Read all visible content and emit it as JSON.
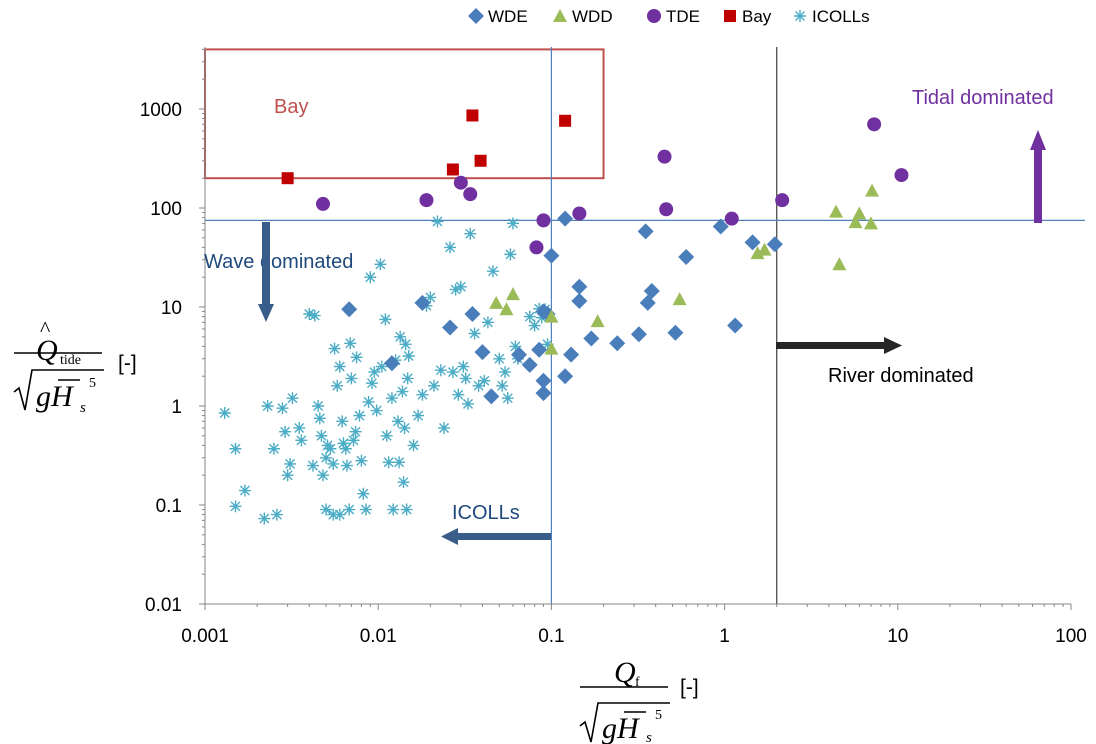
{
  "chart_data": {
    "type": "scatter",
    "x_scale": "log",
    "y_scale": "log",
    "xlim": [
      0.001,
      100
    ],
    "ylim": [
      0.01,
      5000
    ],
    "x_ticks": [
      "0.001",
      "0.01",
      "0.1",
      "1",
      "10",
      "100"
    ],
    "y_ticks": [
      "0.01",
      "0.1",
      "1",
      "10",
      "100",
      "1000"
    ],
    "grid": false,
    "legend_position": "top",
    "xlabel": {
      "num": "Q",
      "num_sub": "f",
      "den": "gH",
      "den_sub": "s",
      "den_sup": "5",
      "unit": "[-]"
    },
    "ylabel": {
      "num": "Q",
      "num_hat": "^",
      "num_sub": "tide",
      "den": "gH",
      "den_sub": "s",
      "den_sup": "5",
      "unit": "[-]"
    },
    "series": [
      {
        "name": "WDE",
        "marker": "diamond",
        "color": "#4a7ebb",
        "points": [
          [
            0.0068,
            9.5
          ],
          [
            0.018,
            11
          ],
          [
            0.026,
            6.2
          ],
          [
            0.035,
            8.5
          ],
          [
            0.04,
            3.5
          ],
          [
            0.045,
            1.25
          ],
          [
            0.065,
            3.3
          ],
          [
            0.075,
            2.6
          ],
          [
            0.085,
            3.7
          ],
          [
            0.09,
            1.8
          ],
          [
            0.09,
            1.35
          ],
          [
            0.09,
            9
          ],
          [
            0.095,
            8.5
          ],
          [
            0.1,
            33
          ],
          [
            0.12,
            78
          ],
          [
            0.12,
            2
          ],
          [
            0.13,
            3.3
          ],
          [
            0.145,
            11.5
          ],
          [
            0.145,
            16
          ],
          [
            0.17,
            4.8
          ],
          [
            0.24,
            4.3
          ],
          [
            0.32,
            5.3
          ],
          [
            0.35,
            58
          ],
          [
            0.36,
            11
          ],
          [
            0.38,
            14.5
          ],
          [
            0.52,
            5.5
          ],
          [
            0.6,
            32
          ],
          [
            0.95,
            65
          ],
          [
            1.15,
            6.5
          ],
          [
            1.45,
            45
          ],
          [
            1.95,
            43
          ],
          [
            0.012,
            2.7
          ]
        ]
      },
      {
        "name": "WDD",
        "marker": "triangle",
        "color": "#9bbb59",
        "points": [
          [
            0.048,
            11
          ],
          [
            0.055,
            9.5
          ],
          [
            0.06,
            13.5
          ],
          [
            0.1,
            8
          ],
          [
            0.1,
            3.8
          ],
          [
            0.185,
            7.2
          ],
          [
            0.55,
            12
          ],
          [
            1.55,
            35
          ],
          [
            1.7,
            38
          ],
          [
            4.4,
            92
          ],
          [
            4.6,
            27
          ],
          [
            5.7,
            72
          ],
          [
            6.0,
            88
          ],
          [
            7.0,
            70
          ],
          [
            7.1,
            150
          ]
        ]
      },
      {
        "name": "TDE",
        "marker": "circle",
        "color": "#7030a0",
        "points": [
          [
            0.0048,
            110
          ],
          [
            0.019,
            120
          ],
          [
            0.03,
            180
          ],
          [
            0.034,
            138
          ],
          [
            0.082,
            40
          ],
          [
            0.09,
            75
          ],
          [
            0.145,
            88
          ],
          [
            0.45,
            330
          ],
          [
            0.46,
            97
          ],
          [
            1.1,
            78
          ],
          [
            2.15,
            120
          ],
          [
            7.3,
            700
          ],
          [
            10.5,
            215
          ]
        ]
      },
      {
        "name": "Bay",
        "marker": "square",
        "color": "#c00000",
        "points": [
          [
            0.003,
            200
          ],
          [
            0.027,
            245
          ],
          [
            0.035,
            860
          ],
          [
            0.039,
            300
          ],
          [
            0.12,
            760
          ]
        ]
      },
      {
        "name": "ICOLLs",
        "marker": "asterisk",
        "color": "#4bacc6",
        "points": [
          [
            0.0013,
            0.85
          ],
          [
            0.0015,
            0.37
          ],
          [
            0.0015,
            0.097
          ],
          [
            0.0017,
            0.14
          ],
          [
            0.0022,
            0.073
          ],
          [
            0.0023,
            1.0
          ],
          [
            0.0025,
            0.37
          ],
          [
            0.0026,
            0.08
          ],
          [
            0.0028,
            0.95
          ],
          [
            0.0029,
            0.55
          ],
          [
            0.003,
            0.2
          ],
          [
            0.0031,
            0.26
          ],
          [
            0.0032,
            1.2
          ],
          [
            0.0035,
            0.6
          ],
          [
            0.0036,
            0.45
          ],
          [
            0.004,
            8.5
          ],
          [
            0.0043,
            8.2
          ],
          [
            0.0042,
            0.25
          ],
          [
            0.0045,
            1.0
          ],
          [
            0.0046,
            0.75
          ],
          [
            0.0047,
            0.5
          ],
          [
            0.0048,
            0.2
          ],
          [
            0.005,
            0.3
          ],
          [
            0.005,
            0.09
          ],
          [
            0.0051,
            0.4
          ],
          [
            0.0053,
            0.37
          ],
          [
            0.0055,
            0.26
          ],
          [
            0.0055,
            0.08
          ],
          [
            0.0056,
            3.8
          ],
          [
            0.0058,
            1.6
          ],
          [
            0.006,
            2.5
          ],
          [
            0.006,
            0.08
          ],
          [
            0.0062,
            0.7
          ],
          [
            0.0063,
            0.42
          ],
          [
            0.0065,
            0.37
          ],
          [
            0.0066,
            0.25
          ],
          [
            0.0068,
            0.09
          ],
          [
            0.0069,
            4.3
          ],
          [
            0.007,
            1.9
          ],
          [
            0.0072,
            0.45
          ],
          [
            0.0074,
            0.55
          ],
          [
            0.0075,
            3.1
          ],
          [
            0.0078,
            0.8
          ],
          [
            0.008,
            0.28
          ],
          [
            0.0082,
            0.13
          ],
          [
            0.0085,
            0.09
          ],
          [
            0.0088,
            1.1
          ],
          [
            0.009,
            20
          ],
          [
            0.0092,
            1.7
          ],
          [
            0.0095,
            2.2
          ],
          [
            0.0098,
            0.9
          ],
          [
            0.0103,
            27
          ],
          [
            0.0105,
            2.5
          ],
          [
            0.011,
            7.5
          ],
          [
            0.0112,
            0.5
          ],
          [
            0.0115,
            0.27
          ],
          [
            0.012,
            1.2
          ],
          [
            0.0122,
            0.09
          ],
          [
            0.0126,
            2.9
          ],
          [
            0.013,
            0.7
          ],
          [
            0.0132,
            0.27
          ],
          [
            0.0134,
            5
          ],
          [
            0.0138,
            1.4
          ],
          [
            0.014,
            0.17
          ],
          [
            0.0142,
            0.6
          ],
          [
            0.0144,
            4.2
          ],
          [
            0.0146,
            0.09
          ],
          [
            0.0148,
            1.9
          ],
          [
            0.015,
            3.2
          ],
          [
            0.016,
            0.4
          ],
          [
            0.017,
            0.8
          ],
          [
            0.018,
            1.3
          ],
          [
            0.019,
            10.3
          ],
          [
            0.02,
            12.5
          ],
          [
            0.021,
            1.6
          ],
          [
            0.022,
            73
          ],
          [
            0.023,
            2.3
          ],
          [
            0.024,
            0.6
          ],
          [
            0.026,
            40
          ],
          [
            0.027,
            2.2
          ],
          [
            0.028,
            15
          ],
          [
            0.029,
            1.3
          ],
          [
            0.03,
            16
          ],
          [
            0.031,
            2.5
          ],
          [
            0.032,
            1.9
          ],
          [
            0.033,
            1.05
          ],
          [
            0.034,
            55
          ],
          [
            0.036,
            5.4
          ],
          [
            0.038,
            1.6
          ],
          [
            0.041,
            1.8
          ],
          [
            0.043,
            7
          ],
          [
            0.046,
            23
          ],
          [
            0.05,
            3
          ],
          [
            0.052,
            1.6
          ],
          [
            0.054,
            2.2
          ],
          [
            0.056,
            1.2
          ],
          [
            0.058,
            34
          ],
          [
            0.06,
            70
          ],
          [
            0.062,
            4
          ],
          [
            0.064,
            3
          ],
          [
            0.075,
            8
          ],
          [
            0.08,
            6.5
          ],
          [
            0.085,
            9.6
          ],
          [
            0.088,
            7.8
          ],
          [
            0.092,
            9.5
          ],
          [
            0.095,
            4.2
          ]
        ]
      }
    ],
    "overlays": {
      "bay_box": {
        "x1": 0.001,
        "x2": 0.2,
        "y1": 200,
        "y2": 4000,
        "color": "#c0504d"
      },
      "threshold_lines": [
        {
          "orient": "vertical",
          "x": 0.1,
          "color": "#4f81bd"
        },
        {
          "orient": "vertical",
          "x": 2,
          "color": "#404040"
        },
        {
          "orient": "horizontal",
          "y": 75,
          "color": "#4f81bd"
        }
      ]
    },
    "annotations": [
      {
        "text": "Bay",
        "color": "#c0504d"
      },
      {
        "text": "Tidal dominated",
        "color": "#7030a0"
      },
      {
        "text": "Wave dominated",
        "color": "#1f497d"
      },
      {
        "text": "River dominated",
        "color": "#000000"
      },
      {
        "text": "ICOLLs",
        "color": "#1f497d"
      }
    ]
  }
}
